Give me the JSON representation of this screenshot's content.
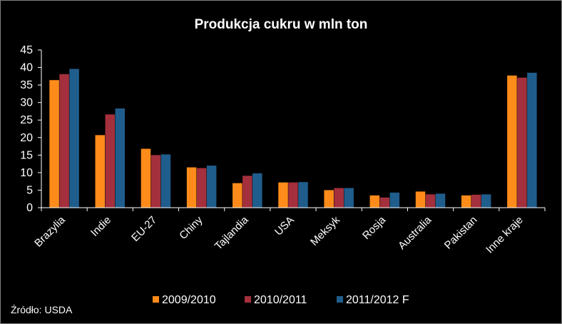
{
  "source_note": "Źródło: USDA",
  "chart_data": {
    "type": "bar",
    "title": "Produkcja cukru w mln ton",
    "xlabel": "",
    "ylabel": "",
    "ylim": [
      0,
      45
    ],
    "yticks": [
      0,
      5,
      10,
      15,
      20,
      25,
      30,
      35,
      40,
      45
    ],
    "grid": false,
    "legend_position": "bottom",
    "categories": [
      "Brazylia",
      "Indie",
      "EU-27",
      "Chiny",
      "Tajlandia",
      "USA",
      "Meksyk",
      "Rosja",
      "Australia",
      "Pakistan",
      "Inne kraje"
    ],
    "series": [
      {
        "name": "2009/2010",
        "color": "#ff8c1a",
        "values": [
          36.4,
          20.7,
          16.8,
          11.5,
          7.0,
          7.2,
          5.0,
          3.5,
          4.6,
          3.5,
          37.7
        ]
      },
      {
        "name": "2010/2011",
        "color": "#a3303c",
        "values": [
          38.1,
          26.6,
          15.0,
          11.3,
          9.1,
          7.2,
          5.6,
          2.9,
          3.8,
          3.7,
          37.1
        ]
      },
      {
        "name": "2011/2012 F",
        "color": "#1f5d8c",
        "values": [
          39.6,
          28.3,
          15.2,
          12.0,
          9.8,
          7.3,
          5.6,
          4.3,
          4.0,
          3.8,
          38.5
        ]
      }
    ]
  }
}
